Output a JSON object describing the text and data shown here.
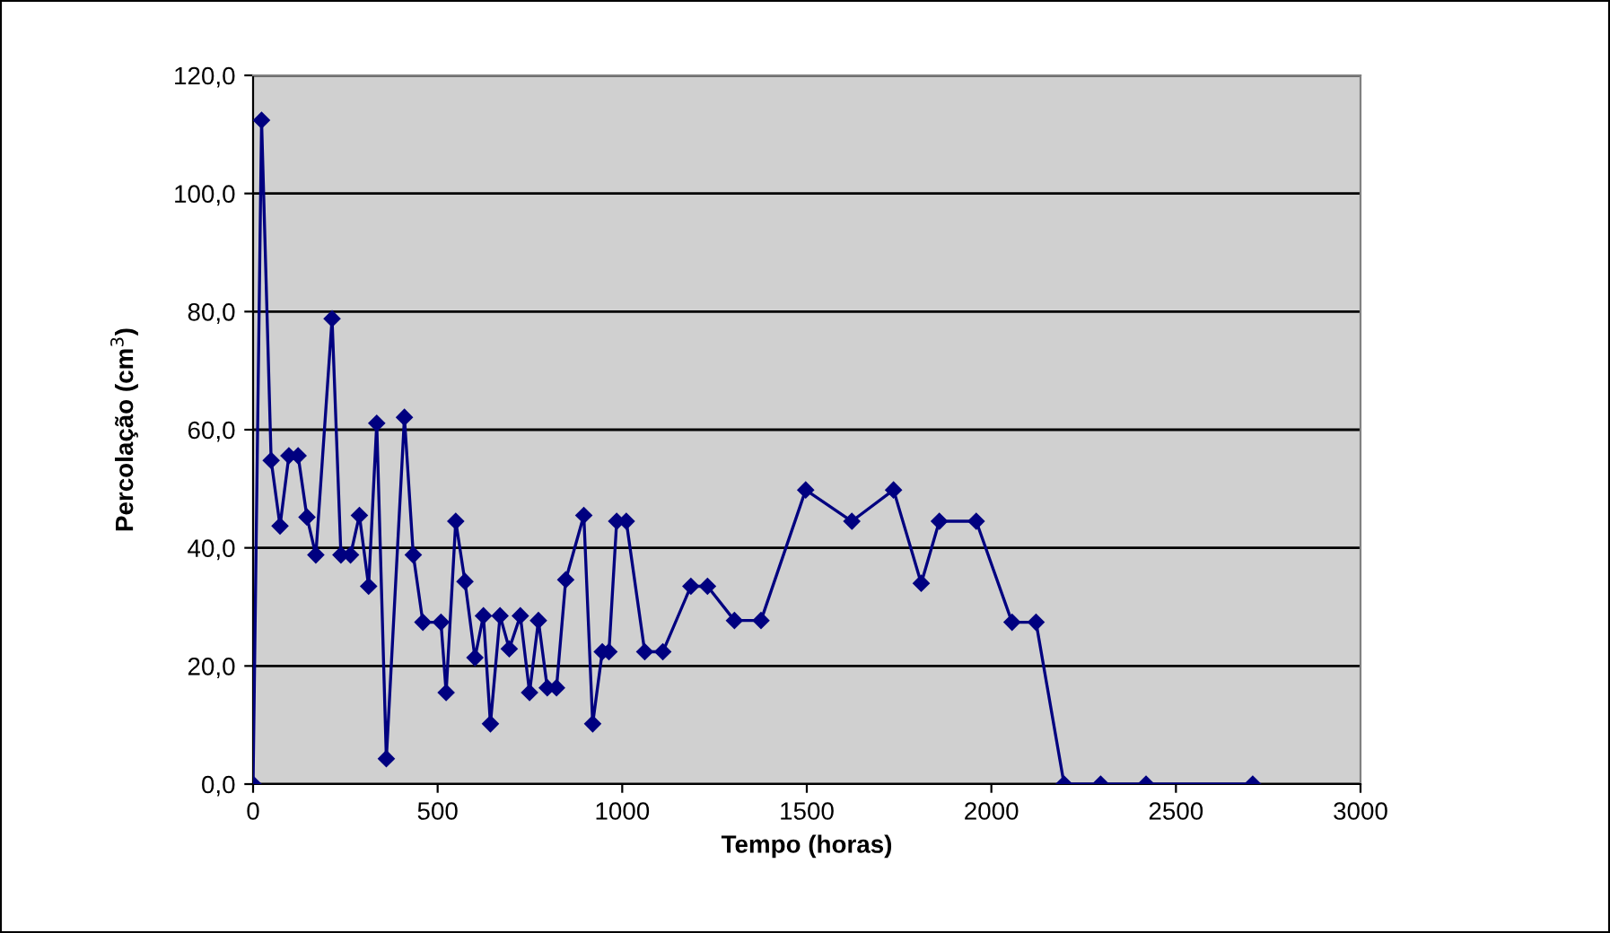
{
  "chart_data": {
    "type": "line",
    "xlabel": "Tempo (horas)",
    "ylabel": "Percolação (cm$^{3}$)",
    "x": [
      0,
      23,
      49,
      73,
      97,
      122,
      146,
      170,
      214,
      238,
      264,
      288,
      313,
      335,
      361,
      410,
      434,
      460,
      509,
      523,
      549,
      574,
      601,
      624,
      643,
      669,
      694,
      724,
      749,
      773,
      797,
      822,
      847,
      896,
      920,
      946,
      964,
      985,
      1011,
      1061,
      1110,
      1186,
      1231,
      1304,
      1376,
      1497,
      1622,
      1735,
      1810,
      1859,
      1959,
      2056,
      2121,
      2197,
      2296,
      2419,
      2708
    ],
    "series": [
      {
        "color": "#000080",
        "values": [
          0,
          112.4,
          54.8,
          43.7,
          55.6,
          55.6,
          45.2,
          38.8,
          78.8,
          38.8,
          38.8,
          45.5,
          33.5,
          61.1,
          4.3,
          62.1,
          38.8,
          27.4,
          27.4,
          15.5,
          44.5,
          34.3,
          21.4,
          28.5,
          10.2,
          28.5,
          22.9,
          28.5,
          15.5,
          27.7,
          16.3,
          16.3,
          34.6,
          45.5,
          10.2,
          22.4,
          22.4,
          44.5,
          44.5,
          22.4,
          22.4,
          33.5,
          33.5,
          27.7,
          27.7,
          49.8,
          44.5,
          49.8,
          34.0,
          44.5,
          44.5,
          27.4,
          27.4,
          0,
          0,
          0,
          0
        ]
      }
    ],
    "xlim": [
      0,
      3000
    ],
    "xticks": [
      0,
      500,
      1000,
      1500,
      2000,
      2500,
      3000
    ],
    "ylim": [
      0,
      120
    ],
    "yticks": [
      {
        "value": 0,
        "label": "0,0"
      },
      {
        "value": 20,
        "label": "20,0"
      },
      {
        "value": 40,
        "label": "40,0"
      },
      {
        "value": 60,
        "label": "60,0"
      },
      {
        "value": 80,
        "label": "80,0"
      },
      {
        "value": 100,
        "label": "100,0"
      },
      {
        "value": 120,
        "label": "120,0"
      }
    ],
    "grid": "y",
    "marker": "diamond",
    "line_style": "solid"
  }
}
